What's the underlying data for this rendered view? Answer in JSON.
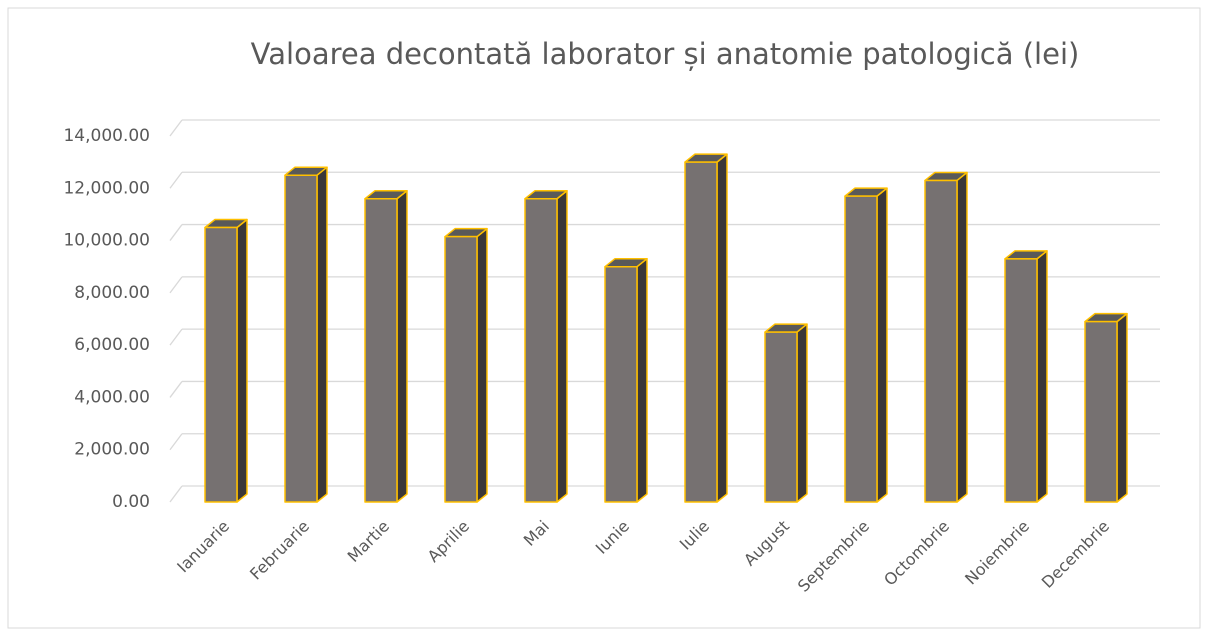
{
  "chart_data": {
    "type": "bar3d",
    "title": "Valoarea decontată  laborator și anatomie patologică (lei)",
    "categories": [
      "Ianuarie",
      "Februarie",
      "Martie",
      "Aprilie",
      "Mai",
      "Iunie",
      "Iulie",
      "August",
      "Septembrie",
      "Octombrie",
      "Noiembrie",
      "Decembrie"
    ],
    "values": [
      10500,
      12500,
      11600,
      10150,
      11600,
      9000,
      13000,
      6500,
      11700,
      12300,
      9300,
      6900
    ],
    "color": "#767171",
    "edge_color": "#ffc000",
    "ylim": [
      0,
      14000
    ],
    "yticks": [
      {
        "value": 0,
        "label": "0.00"
      },
      {
        "value": 2000,
        "label": "2,000.00"
      },
      {
        "value": 4000,
        "label": "4,000.00"
      },
      {
        "value": 6000,
        "label": "6,000.00"
      },
      {
        "value": 8000,
        "label": "8,000.00"
      },
      {
        "value": 10000,
        "label": "10,000.00"
      },
      {
        "value": 12000,
        "label": "12,000.00"
      },
      {
        "value": 14000,
        "label": "14,000.00"
      }
    ],
    "grid": true
  }
}
